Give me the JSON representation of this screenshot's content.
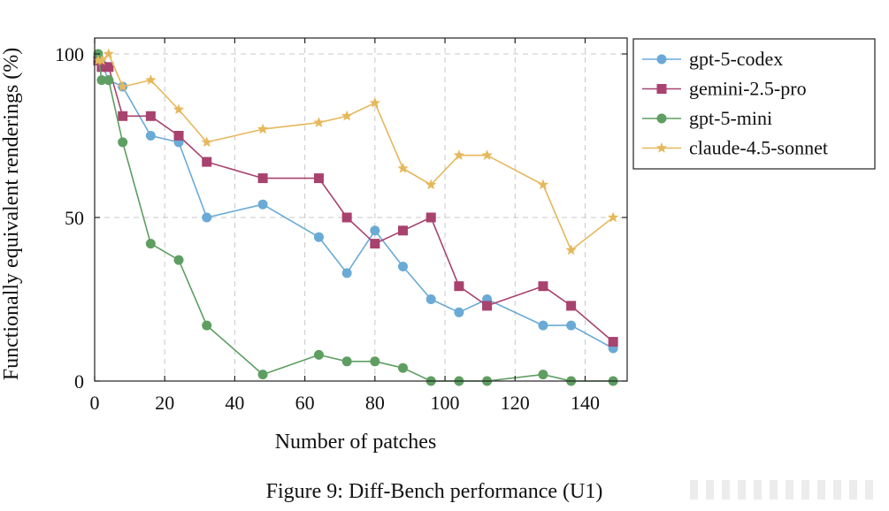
{
  "figure": {
    "caption": "Figure 9: Diff-Bench performance (U1)"
  },
  "chart_data": {
    "type": "line",
    "title": "",
    "xlabel": "Number of patches",
    "ylabel": "Functionally equivalent renderings (%)",
    "xlim": [
      0,
      152
    ],
    "ylim": [
      0,
      105
    ],
    "xticks": [
      0,
      20,
      40,
      60,
      80,
      100,
      120,
      140
    ],
    "yticks": [
      0,
      50,
      100
    ],
    "grid": true,
    "legend_position": "outside-top-right",
    "series": [
      {
        "name": "gpt-5-codex",
        "color": "#6aaad6",
        "marker": "circle",
        "x": [
          1,
          2,
          4,
          8,
          16,
          24,
          32,
          48,
          64,
          72,
          80,
          88,
          96,
          104,
          112,
          128,
          136,
          148
        ],
        "y": [
          98,
          97,
          92,
          90,
          75,
          73,
          50,
          54,
          44,
          33,
          46,
          35,
          25,
          21,
          25,
          17,
          17,
          10
        ]
      },
      {
        "name": "gemini-2.5-pro",
        "color": "#a8426e",
        "marker": "square",
        "x": [
          1,
          2,
          4,
          8,
          16,
          24,
          32,
          48,
          64,
          72,
          80,
          88,
          96,
          104,
          112,
          128,
          136,
          148
        ],
        "y": [
          98,
          96,
          96,
          81,
          81,
          75,
          67,
          62,
          62,
          50,
          42,
          46,
          50,
          29,
          23,
          29,
          23,
          12
        ]
      },
      {
        "name": "gpt-5-mini",
        "color": "#5e9e62",
        "marker": "circle",
        "x": [
          1,
          2,
          4,
          8,
          16,
          24,
          32,
          48,
          64,
          72,
          80,
          88,
          96,
          104,
          112,
          128,
          136,
          148
        ],
        "y": [
          100,
          92,
          92,
          73,
          42,
          37,
          17,
          2,
          8,
          6,
          6,
          4,
          0,
          0,
          0,
          2,
          0,
          0
        ]
      },
      {
        "name": "claude-4.5-sonnet",
        "color": "#e6b85c",
        "marker": "star",
        "x": [
          1,
          2,
          4,
          8,
          16,
          24,
          32,
          48,
          64,
          72,
          80,
          88,
          96,
          104,
          112,
          128,
          136,
          148
        ],
        "y": [
          98,
          98,
          100,
          90,
          92,
          83,
          73,
          77,
          79,
          81,
          85,
          65,
          60,
          69,
          69,
          60,
          40,
          50
        ]
      }
    ]
  }
}
